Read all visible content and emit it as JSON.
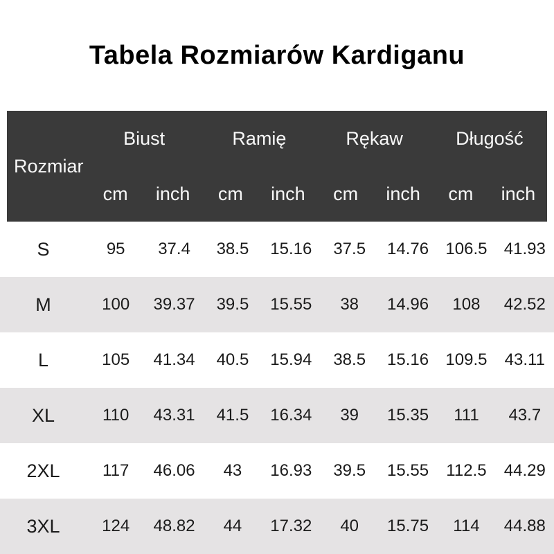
{
  "page": {
    "title": "Tabela Rozmiarów Kardiganu"
  },
  "colors": {
    "header_bg": "#3a3a3a",
    "header_text": "#f7f7f7",
    "row_bg": "#ffffff",
    "row_alt_bg": "#e5e3e4",
    "body_text": "#1b1b1b",
    "title_text": "#000000"
  },
  "chart_data": {
    "type": "table",
    "title": "Tabela Rozmiarów Kardiganu",
    "size_column_header": "Rozmiar",
    "column_groups": [
      "Biust",
      "Ramię",
      "Rękaw",
      "Długość"
    ],
    "unit_labels": [
      "cm",
      "inch",
      "cm",
      "inch",
      "cm",
      "inch",
      "cm",
      "inch"
    ],
    "rows": [
      {
        "size": "S",
        "values": [
          "95",
          "37.4",
          "38.5",
          "15.16",
          "37.5",
          "14.76",
          "106.5",
          "41.93"
        ]
      },
      {
        "size": "M",
        "values": [
          "100",
          "39.37",
          "39.5",
          "15.55",
          "38",
          "14.96",
          "108",
          "42.52"
        ]
      },
      {
        "size": "L",
        "values": [
          "105",
          "41.34",
          "40.5",
          "15.94",
          "38.5",
          "15.16",
          "109.5",
          "43.11"
        ]
      },
      {
        "size": "XL",
        "values": [
          "110",
          "43.31",
          "41.5",
          "16.34",
          "39",
          "15.35",
          "111",
          "43.7"
        ]
      },
      {
        "size": "2XL",
        "values": [
          "117",
          "46.06",
          "43",
          "16.93",
          "39.5",
          "15.55",
          "112.5",
          "44.29"
        ]
      },
      {
        "size": "3XL",
        "values": [
          "124",
          "48.82",
          "44",
          "17.32",
          "40",
          "15.75",
          "114",
          "44.88"
        ]
      }
    ]
  }
}
